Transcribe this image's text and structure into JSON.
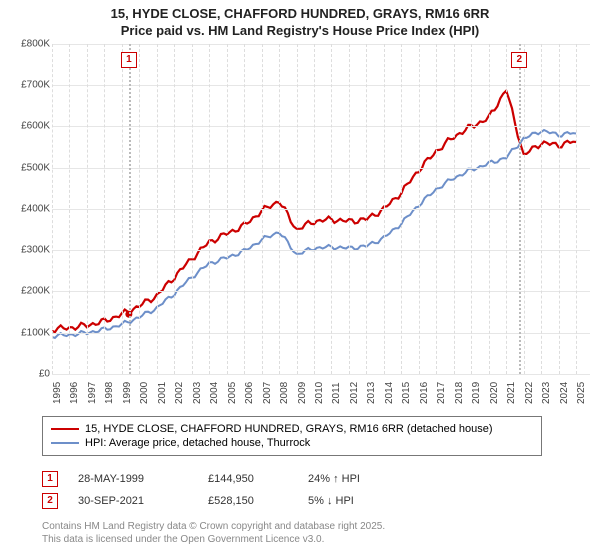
{
  "title_line1": "15, HYDE CLOSE, CHAFFORD HUNDRED, GRAYS, RM16 6RR",
  "title_line2": "Price paid vs. HM Land Registry's House Price Index (HPI)",
  "chart": {
    "type": "line",
    "background_color": "#ffffff",
    "grid_color": "#e6e6e6",
    "ylim": [
      0,
      800000
    ],
    "ytick_step": 100000,
    "y_ticks": [
      "£0",
      "£100K",
      "£200K",
      "£300K",
      "£400K",
      "£500K",
      "£600K",
      "£700K",
      "£800K"
    ],
    "x_years": [
      1995,
      1996,
      1997,
      1998,
      1999,
      2000,
      2001,
      2002,
      2003,
      2004,
      2005,
      2006,
      2007,
      2008,
      2009,
      2010,
      2011,
      2012,
      2013,
      2014,
      2015,
      2016,
      2017,
      2018,
      2019,
      2020,
      2021,
      2022,
      2023,
      2024,
      2025
    ],
    "series": [
      {
        "name": "15, HYDE CLOSE, CHAFFORD HUNDRED, GRAYS, RM16 6RR (detached house)",
        "color": "#cc0000",
        "line_width": 2.2,
        "values_by_year": [
          108,
          112,
          118,
          128,
          145,
          165,
          190,
          235,
          280,
          320,
          340,
          360,
          395,
          420,
          350,
          370,
          375,
          370,
          375,
          400,
          440,
          495,
          540,
          575,
          600,
          620,
          690,
          530,
          560,
          555,
          565
        ]
      },
      {
        "name": "HPI: Average price, detached house, Thurrock",
        "color": "#6d8fc9",
        "line_width": 2,
        "values_by_year": [
          92,
          95,
          100,
          108,
          120,
          138,
          160,
          195,
          235,
          268,
          282,
          298,
          325,
          345,
          290,
          305,
          308,
          305,
          310,
          330,
          365,
          410,
          448,
          475,
          495,
          510,
          525,
          570,
          590,
          580,
          585
        ]
      }
    ],
    "markers": [
      {
        "label": "1",
        "year": 1999.4,
        "top": 8
      },
      {
        "label": "2",
        "year": 2021.75,
        "top": 8
      }
    ],
    "marker_color": "#cc0000"
  },
  "legend": {
    "rows": [
      {
        "color": "#cc0000",
        "label": "15, HYDE CLOSE, CHAFFORD HUNDRED, GRAYS, RM16 6RR (detached house)"
      },
      {
        "color": "#6d8fc9",
        "label": "HPI: Average price, detached house, Thurrock"
      }
    ]
  },
  "transactions": [
    {
      "marker": "1",
      "date": "28-MAY-1999",
      "price": "£144,950",
      "hpi": "24% ↑ HPI"
    },
    {
      "marker": "2",
      "date": "30-SEP-2021",
      "price": "£528,150",
      "hpi": "5% ↓ HPI"
    }
  ],
  "footnote_line1": "Contains HM Land Registry data © Crown copyright and database right 2025.",
  "footnote_line2": "This data is licensed under the Open Government Licence v3.0."
}
